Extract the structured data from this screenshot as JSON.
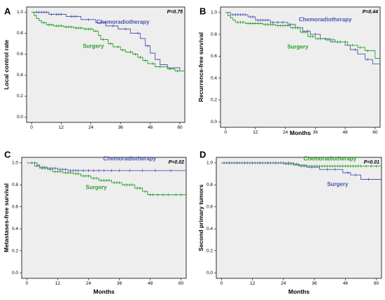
{
  "colors": {
    "chemoradiotherapy": "#4a56b0",
    "surgery": "#2ba02b",
    "plot_bg": "#eeeeee",
    "frame": "#000000"
  },
  "chart_data": [
    {
      "panel": "A",
      "type": "line",
      "step": true,
      "xlabel": "",
      "ylabel": "Local control rate",
      "xticks": [
        0,
        12,
        24,
        36,
        48,
        60
      ],
      "yticks": [
        "0.0",
        "0.2",
        "0.4",
        "0.6",
        "0.8",
        "1.0"
      ],
      "xlim": [
        -2,
        62
      ],
      "ylim": [
        -0.05,
        1.05
      ],
      "p_value": "P=0.75",
      "series": [
        {
          "name": "Chemoradiotherapy",
          "color": "#4a56b0",
          "steps": [
            [
              0,
              1.0
            ],
            [
              7,
              0.98
            ],
            [
              14,
              0.96
            ],
            [
              20,
              0.93
            ],
            [
              26,
              0.9
            ],
            [
              30,
              0.87
            ],
            [
              35,
              0.84
            ],
            [
              40,
              0.8
            ],
            [
              44,
              0.75
            ],
            [
              46,
              0.68
            ],
            [
              48,
              0.61
            ],
            [
              50,
              0.55
            ],
            [
              52,
              0.5
            ],
            [
              55,
              0.47
            ],
            [
              60,
              0.44
            ],
            [
              62,
              0.44
            ]
          ],
          "censor_x": [
            2,
            3,
            4,
            5,
            6,
            8,
            10,
            11,
            12,
            16,
            17,
            18,
            23,
            28,
            33,
            38,
            43,
            47,
            55
          ]
        },
        {
          "name": "Surgery",
          "color": "#2ba02b",
          "steps": [
            [
              0,
              1.0
            ],
            [
              1,
              0.97
            ],
            [
              2,
              0.94
            ],
            [
              3,
              0.92
            ],
            [
              4,
              0.9
            ],
            [
              6,
              0.88
            ],
            [
              9,
              0.87
            ],
            [
              13,
              0.86
            ],
            [
              17,
              0.85
            ],
            [
              21,
              0.84
            ],
            [
              25,
              0.82
            ],
            [
              27,
              0.78
            ],
            [
              28,
              0.74
            ],
            [
              31,
              0.7
            ],
            [
              33,
              0.67
            ],
            [
              36,
              0.64
            ],
            [
              38,
              0.62
            ],
            [
              41,
              0.6
            ],
            [
              43,
              0.57
            ],
            [
              45,
              0.54
            ],
            [
              47,
              0.51
            ],
            [
              50,
              0.48
            ],
            [
              55,
              0.46
            ],
            [
              58,
              0.44
            ],
            [
              62,
              0.44
            ]
          ],
          "censor_x": [
            5,
            7,
            8,
            10,
            11,
            12,
            14,
            15,
            16,
            18,
            19,
            20,
            22,
            23,
            24,
            26,
            29,
            32,
            35,
            37,
            40,
            42,
            44,
            46,
            49,
            52,
            56,
            59
          ]
        }
      ],
      "labels": [
        {
          "text": "Chemoradiotherapy",
          "series": "Chemoradiotherapy",
          "x": 37,
          "y": 0.89
        },
        {
          "text": "Surgery",
          "series": "Surgery",
          "x": 25,
          "y": 0.66
        }
      ]
    },
    {
      "panel": "B",
      "type": "line",
      "step": true,
      "xlabel": "Months",
      "ylabel": "Recurrence-free survival",
      "xticks": [
        0,
        12,
        24,
        36,
        48,
        60
      ],
      "yticks": [
        "0.0",
        "0.2",
        "0.4",
        "0.6",
        "0.8",
        "1.0"
      ],
      "xlim": [
        -2,
        62
      ],
      "ylim": [
        -0.05,
        1.05
      ],
      "p_value": "P=0.44",
      "series": [
        {
          "name": "Chemoradiotherapy",
          "color": "#4a56b0",
          "steps": [
            [
              0,
              1.0
            ],
            [
              2,
              0.98
            ],
            [
              9,
              0.96
            ],
            [
              12,
              0.93
            ],
            [
              18,
              0.91
            ],
            [
              25,
              0.89
            ],
            [
              28,
              0.86
            ],
            [
              31,
              0.83
            ],
            [
              34,
              0.8
            ],
            [
              38,
              0.76
            ],
            [
              42,
              0.73
            ],
            [
              48,
              0.7
            ],
            [
              50,
              0.66
            ],
            [
              53,
              0.62
            ],
            [
              56,
              0.57
            ],
            [
              59,
              0.53
            ],
            [
              62,
              0.53
            ]
          ],
          "censor_x": [
            3,
            4,
            5,
            6,
            7,
            8,
            10,
            11,
            13,
            14,
            15,
            16,
            17,
            19,
            21,
            23,
            26,
            29,
            33,
            36,
            40,
            45,
            52,
            57
          ]
        },
        {
          "name": "Surgery",
          "color": "#2ba02b",
          "steps": [
            [
              0,
              1.0
            ],
            [
              1,
              0.97
            ],
            [
              2,
              0.95
            ],
            [
              3,
              0.93
            ],
            [
              4,
              0.91
            ],
            [
              8,
              0.9
            ],
            [
              15,
              0.89
            ],
            [
              20,
              0.88
            ],
            [
              26,
              0.86
            ],
            [
              30,
              0.82
            ],
            [
              33,
              0.78
            ],
            [
              36,
              0.76
            ],
            [
              40,
              0.75
            ],
            [
              44,
              0.73
            ],
            [
              49,
              0.7
            ],
            [
              53,
              0.68
            ],
            [
              56,
              0.65
            ],
            [
              60,
              0.58
            ],
            [
              62,
              0.58
            ]
          ],
          "censor_x": [
            5,
            6,
            7,
            9,
            10,
            11,
            12,
            13,
            14,
            16,
            17,
            18,
            19,
            21,
            22,
            23,
            24,
            25,
            27,
            28,
            29,
            31,
            32,
            34,
            35,
            37,
            38,
            41,
            43,
            46,
            48,
            51,
            54,
            57
          ]
        }
      ],
      "labels": [
        {
          "text": "Chemoradiotherapy",
          "series": "Chemoradiotherapy",
          "x": 40,
          "y": 0.92
        },
        {
          "text": "Surgery",
          "series": "Surgery",
          "x": 29,
          "y": 0.67
        }
      ]
    },
    {
      "panel": "C",
      "type": "line",
      "step": true,
      "xlabel": "Months",
      "ylabel": "Metastases-free survival",
      "xticks": [
        0,
        12,
        24,
        36,
        48,
        60
      ],
      "yticks": [
        "0.0",
        "0.2",
        "0.4",
        "0.6",
        "0.8",
        "1.0"
      ],
      "xlim": [
        -2,
        62
      ],
      "ylim": [
        -0.05,
        1.05
      ],
      "p_value": "P=0.02",
      "series": [
        {
          "name": "Chemoradiotherapy",
          "color": "#4a56b0",
          "steps": [
            [
              0,
              1.0
            ],
            [
              4,
              0.98
            ],
            [
              5,
              0.96
            ],
            [
              8,
              0.95
            ],
            [
              12,
              0.94
            ],
            [
              16,
              0.93
            ],
            [
              62,
              0.93
            ]
          ],
          "censor_x": [
            2,
            3,
            6,
            7,
            9,
            10,
            11,
            13,
            14,
            15,
            17,
            18,
            19,
            20,
            22,
            24,
            26,
            28,
            30,
            33,
            36,
            40,
            45,
            50,
            56
          ]
        },
        {
          "name": "Surgery",
          "color": "#2ba02b",
          "steps": [
            [
              0,
              1.0
            ],
            [
              3,
              0.97
            ],
            [
              5,
              0.95
            ],
            [
              8,
              0.94
            ],
            [
              10,
              0.92
            ],
            [
              14,
              0.91
            ],
            [
              18,
              0.9
            ],
            [
              21,
              0.88
            ],
            [
              25,
              0.86
            ],
            [
              28,
              0.84
            ],
            [
              33,
              0.82
            ],
            [
              37,
              0.8
            ],
            [
              42,
              0.77
            ],
            [
              45,
              0.74
            ],
            [
              47,
              0.71
            ],
            [
              62,
              0.71
            ]
          ],
          "censor_x": [
            4,
            6,
            7,
            9,
            11,
            12,
            13,
            15,
            16,
            17,
            19,
            20,
            22,
            23,
            24,
            26,
            27,
            29,
            30,
            31,
            32,
            34,
            35,
            36,
            38,
            39,
            40,
            41,
            43,
            44,
            46,
            48,
            49,
            51,
            53,
            55,
            58,
            60
          ]
        }
      ],
      "labels": [
        {
          "text": "Chemoradiotherapy",
          "series": "Chemoradiotherapy",
          "x": 40,
          "y": 1.02
        },
        {
          "text": "Surgery",
          "series": "Surgery",
          "x": 27,
          "y": 0.76
        }
      ]
    },
    {
      "panel": "D",
      "type": "line",
      "step": true,
      "xlabel": "Months",
      "ylabel": "Second primary tumors",
      "xticks": [
        0,
        12,
        24,
        36,
        48,
        60
      ],
      "yticks": [
        "0.0",
        "0.2",
        "0.4",
        "0.6",
        "0.8",
        "1.0"
      ],
      "xlim": [
        -2,
        62
      ],
      "ylim": [
        -0.05,
        1.05
      ],
      "p_value": "P=0.01",
      "series": [
        {
          "name": "Chemoradiotherapy",
          "color": "#2ba02b",
          "steps": [
            [
              0,
              1.0
            ],
            [
              24,
              0.99
            ],
            [
              30,
              0.97
            ],
            [
              62,
              0.97
            ]
          ],
          "censor_x": [
            1,
            2,
            3,
            4,
            5,
            6,
            7,
            8,
            9,
            10,
            11,
            12,
            13,
            14,
            15,
            16,
            17,
            18,
            19,
            20,
            21,
            22,
            23,
            25,
            26,
            27,
            28,
            29,
            31,
            32,
            33,
            34,
            35,
            36,
            37,
            38,
            39,
            40,
            41,
            42,
            43,
            44,
            45,
            46,
            47,
            48,
            49,
            50,
            51,
            52,
            53,
            54,
            56,
            58,
            60
          ]
        },
        {
          "name": "Surgery",
          "color": "#4a56b0",
          "steps": [
            [
              0,
              1.0
            ],
            [
              28,
              0.98
            ],
            [
              33,
              0.96
            ],
            [
              38,
              0.94
            ],
            [
              47,
              0.91
            ],
            [
              50,
              0.89
            ],
            [
              54,
              0.85
            ],
            [
              62,
              0.85
            ]
          ],
          "censor_x": [
            3,
            6,
            9,
            12,
            15,
            18,
            21,
            24,
            26,
            30,
            35,
            41,
            44,
            49,
            52,
            57
          ]
        }
      ],
      "labels": [
        {
          "text": "Chemoradiotherapy",
          "series": "Chemoradiotherapy",
          "x": 42,
          "y": 1.02
        },
        {
          "text": "Surgery",
          "series": "Surgery",
          "x": 45,
          "y": 0.79
        }
      ]
    }
  ]
}
